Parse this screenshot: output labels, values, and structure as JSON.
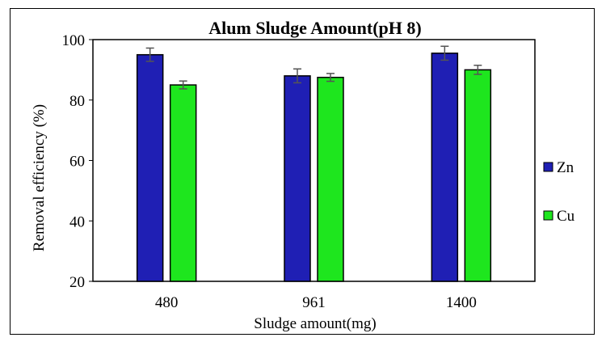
{
  "chart_data": {
    "type": "bar",
    "title": "Alum Sludge Amount(pH 8)",
    "xlabel": "Sludge amount(mg)",
    "ylabel": "Removal efficiency (%)",
    "categories": [
      "480",
      "961",
      "1400"
    ],
    "ylim": [
      20,
      100
    ],
    "yticks": [
      20,
      40,
      60,
      80,
      100
    ],
    "grid": false,
    "legend_position": "right",
    "series": [
      {
        "name": "Zn",
        "color": "#1f1fb4",
        "values": [
          95,
          88,
          95.5
        ],
        "errors": [
          2.2,
          2.3,
          2.3
        ]
      },
      {
        "name": "Cu",
        "color": "#1ee61e",
        "values": [
          85,
          87.5,
          90
        ],
        "errors": [
          1.3,
          1.3,
          1.5
        ]
      }
    ]
  }
}
